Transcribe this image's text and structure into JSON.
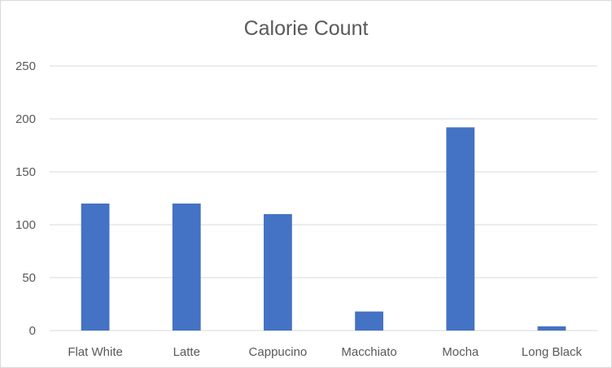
{
  "chart_data": {
    "type": "bar",
    "title": "Calorie Count",
    "xlabel": "",
    "ylabel": "",
    "categories": [
      "Flat White",
      "Latte",
      "Cappucino",
      "Macchiato",
      "Mocha",
      "Long Black"
    ],
    "values": [
      120,
      120,
      110,
      18,
      192,
      4
    ],
    "ylim": [
      0,
      250
    ],
    "yticks": [
      0,
      50,
      100,
      150,
      200,
      250
    ],
    "grid": true,
    "legend": "none",
    "bar_color": "#4472C4",
    "grid_color": "#d9d9d9",
    "text_color": "#595959"
  }
}
